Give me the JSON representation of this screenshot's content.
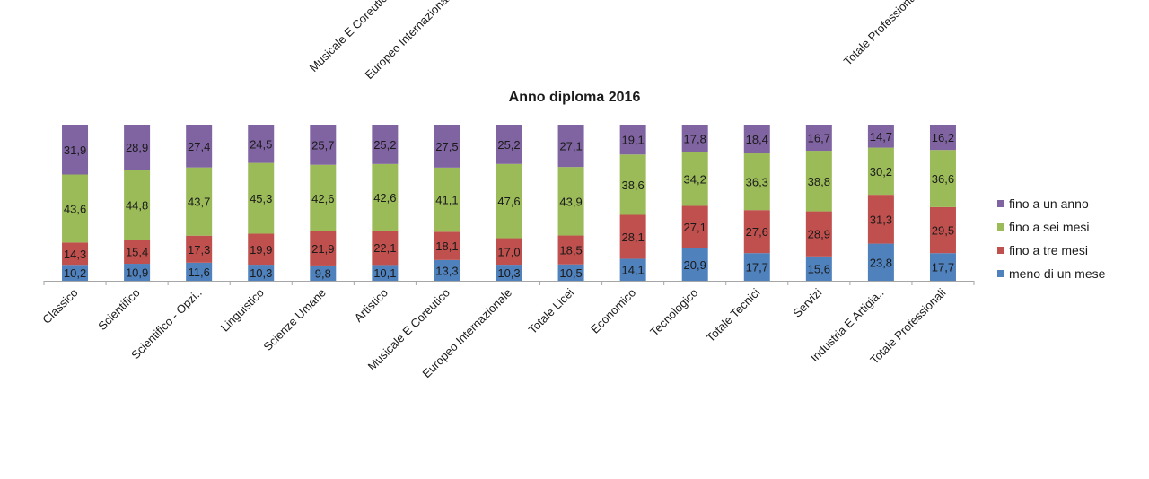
{
  "chart_data": {
    "type": "bar",
    "stacked": true,
    "title": "Anno diploma 2016",
    "categories": [
      "Classico",
      "Scientifico",
      "Scientifico - Opzi..",
      "Linguistico",
      "Scienze Umane",
      "Artistico",
      "Musicale E Coreutico",
      "Europeo Internazionale",
      "Totale Licei",
      "Economico",
      "Tecnologico",
      "Totale Tecnici",
      "Servizi",
      "Industria E Artigia..",
      "Totale Professionali"
    ],
    "series": [
      {
        "name": "meno di un mese",
        "color": "#4F81BD",
        "values": [
          10.2,
          10.9,
          11.6,
          10.3,
          9.8,
          10.1,
          13.3,
          10.3,
          10.5,
          14.1,
          20.9,
          17.7,
          15.6,
          23.8,
          17.7
        ]
      },
      {
        "name": "fino a tre mesi",
        "color": "#C0504D",
        "values": [
          14.3,
          15.4,
          17.3,
          19.9,
          21.9,
          22.1,
          18.1,
          17.0,
          18.5,
          28.1,
          27.1,
          27.6,
          28.9,
          31.3,
          29.5
        ]
      },
      {
        "name": "fino a sei mesi",
        "color": "#9BBB59",
        "values": [
          43.6,
          44.8,
          43.7,
          45.3,
          42.6,
          42.6,
          41.1,
          47.6,
          43.9,
          38.6,
          34.2,
          36.3,
          38.8,
          30.2,
          36.6
        ]
      },
      {
        "name": "fino a un anno",
        "color": "#8064A2",
        "values": [
          31.9,
          28.9,
          27.4,
          24.5,
          25.7,
          25.2,
          27.5,
          25.2,
          27.1,
          19.1,
          17.8,
          18.4,
          16.7,
          14.7,
          16.2
        ]
      }
    ],
    "legend_order": [
      "fino a un anno",
      "fino a sei mesi",
      "fino a tre mesi",
      "meno di un mese"
    ],
    "legend_position": "right",
    "value_labels": [
      "10,2",
      "10,9",
      "11,6",
      "10,3",
      "9,8",
      "10,1",
      "13,3",
      "10,3",
      "10,5",
      "14,1",
      "20,9",
      "17,7",
      "15,6",
      "23,8",
      "17,7",
      "14,3",
      "15,4",
      "17,3",
      "19,9",
      "21,9",
      "22,1",
      "18,1",
      "17,0",
      "18,5",
      "28,1",
      "27,1",
      "27,6",
      "28,9",
      "31,3",
      "29,5",
      "43,6",
      "44,8",
      "43,7",
      "45,3",
      "42,6",
      "42,6",
      "41,1",
      "47,6",
      "43,9",
      "38,6",
      "34,2",
      "36,3",
      "38,8",
      "30,2",
      "36,6",
      "31,9",
      "28,9",
      "27,4",
      "24,5",
      "25,7",
      "25,2",
      "27,5",
      "25,2",
      "27,1",
      "19,1",
      "17,8",
      "18,4",
      "16,7",
      "14,7",
      "16,2"
    ],
    "ylim": [
      0,
      100
    ],
    "grid": false,
    "top_clipped_labels": [
      "Musicale E Coreutico",
      "Europeo Internazionale",
      "Totale Professionali"
    ]
  }
}
